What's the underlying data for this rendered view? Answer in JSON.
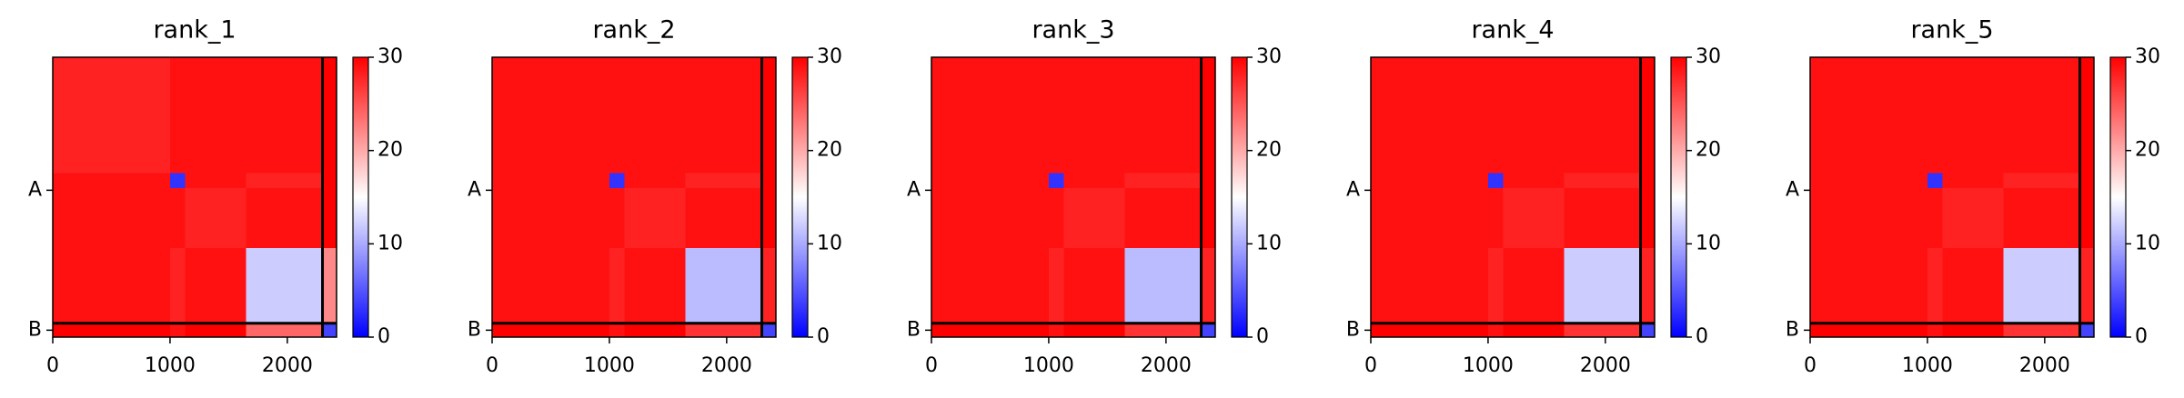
{
  "chart_data": [
    {
      "type": "heatmap",
      "title": "rank_1",
      "colormap": "bwr",
      "edges": [
        0,
        1000,
        1130,
        1650,
        2300,
        2420
      ],
      "values": [
        [
          28,
          29,
          29,
          29,
          30
        ],
        [
          29,
          3,
          29,
          28,
          30
        ],
        [
          29,
          29,
          28,
          29,
          30
        ],
        [
          29,
          28,
          29,
          12,
          22
        ],
        [
          30,
          29,
          30,
          24,
          4
        ]
      ],
      "boundaries": [
        2300
      ],
      "xlim": [
        0,
        2420
      ],
      "ylim": [
        2420,
        0
      ],
      "xticks": [
        0,
        1000,
        2000
      ],
      "yticks": [
        {
          "value": 1150,
          "label": "A"
        },
        {
          "value": 2360,
          "label": "B"
        }
      ],
      "clim": [
        0,
        30
      ],
      "cticks": [
        0,
        10,
        20,
        30
      ]
    },
    {
      "type": "heatmap",
      "title": "rank_2",
      "colormap": "bwr",
      "edges": [
        0,
        1000,
        1130,
        1650,
        2300,
        2420
      ],
      "values": [
        [
          29,
          29,
          29,
          29,
          30
        ],
        [
          29,
          3,
          29,
          28,
          30
        ],
        [
          29,
          29,
          28,
          29,
          30
        ],
        [
          29,
          28,
          29,
          11,
          28
        ],
        [
          30,
          29,
          30,
          27,
          4
        ]
      ],
      "boundaries": [
        2300
      ],
      "xlim": [
        0,
        2420
      ],
      "ylim": [
        2420,
        0
      ],
      "xticks": [
        0,
        1000,
        2000
      ],
      "yticks": [
        {
          "value": 1150,
          "label": "A"
        },
        {
          "value": 2360,
          "label": "B"
        }
      ],
      "clim": [
        0,
        30
      ],
      "cticks": [
        0,
        10,
        20,
        30
      ]
    },
    {
      "type": "heatmap",
      "title": "rank_3",
      "colormap": "bwr",
      "edges": [
        0,
        1000,
        1130,
        1650,
        2300,
        2420
      ],
      "values": [
        [
          29,
          29,
          29,
          29,
          30
        ],
        [
          29,
          3,
          29,
          28,
          30
        ],
        [
          29,
          29,
          28,
          29,
          30
        ],
        [
          29,
          28,
          29,
          11,
          28
        ],
        [
          30,
          29,
          30,
          27,
          4
        ]
      ],
      "boundaries": [
        2300
      ],
      "xlim": [
        0,
        2420
      ],
      "ylim": [
        2420,
        0
      ],
      "xticks": [
        0,
        1000,
        2000
      ],
      "yticks": [
        {
          "value": 1150,
          "label": "A"
        },
        {
          "value": 2360,
          "label": "B"
        }
      ],
      "clim": [
        0,
        30
      ],
      "cticks": [
        0,
        10,
        20,
        30
      ]
    },
    {
      "type": "heatmap",
      "title": "rank_4",
      "colormap": "bwr",
      "edges": [
        0,
        1000,
        1130,
        1650,
        2300,
        2420
      ],
      "values": [
        [
          29,
          29,
          29,
          29,
          30
        ],
        [
          29,
          3,
          29,
          28,
          30
        ],
        [
          29,
          29,
          28,
          29,
          30
        ],
        [
          29,
          28,
          29,
          12,
          28
        ],
        [
          30,
          29,
          30,
          27,
          4
        ]
      ],
      "boundaries": [
        2300
      ],
      "xlim": [
        0,
        2420
      ],
      "ylim": [
        2420,
        0
      ],
      "xticks": [
        0,
        1000,
        2000
      ],
      "yticks": [
        {
          "value": 1150,
          "label": "A"
        },
        {
          "value": 2360,
          "label": "B"
        }
      ],
      "clim": [
        0,
        30
      ],
      "cticks": [
        0,
        10,
        20,
        30
      ]
    },
    {
      "type": "heatmap",
      "title": "rank_5",
      "colormap": "bwr",
      "edges": [
        0,
        1000,
        1130,
        1650,
        2300,
        2420
      ],
      "values": [
        [
          29,
          29,
          29,
          29,
          30
        ],
        [
          29,
          3,
          29,
          28,
          30
        ],
        [
          29,
          29,
          28,
          29,
          30
        ],
        [
          29,
          28,
          29,
          12,
          28
        ],
        [
          30,
          29,
          30,
          27,
          4
        ]
      ],
      "boundaries": [
        2300
      ],
      "xlim": [
        0,
        2420
      ],
      "ylim": [
        2420,
        0
      ],
      "xticks": [
        0,
        1000,
        2000
      ],
      "yticks": [
        {
          "value": 1150,
          "label": "A"
        },
        {
          "value": 2360,
          "label": "B"
        }
      ],
      "clim": [
        0,
        30
      ],
      "cticks": [
        0,
        10,
        20,
        30
      ]
    }
  ]
}
